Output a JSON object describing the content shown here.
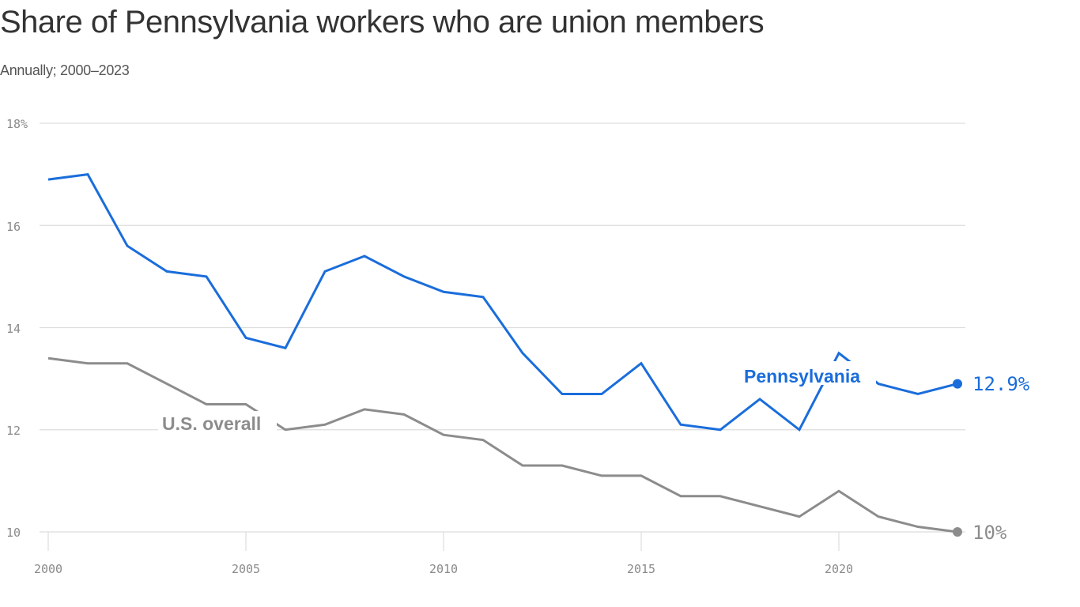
{
  "header": {
    "title": "Share of Pennsylvania workers who are union members",
    "subtitle": "Annually; 2000–2023"
  },
  "axes": {
    "y_ticks": [
      "18%",
      "16",
      "14",
      "12",
      "10"
    ],
    "x_ticks": [
      "2000",
      "2005",
      "2010",
      "2015",
      "2020"
    ]
  },
  "labels": {
    "pennsylvania": "Pennsylvania",
    "us_overall": "U.S. overall",
    "pennsylvania_end": "12.9%",
    "us_end": "10%"
  },
  "colors": {
    "pennsylvania": "#1a6ddb",
    "us_overall": "#8c8c8c",
    "grid": "#dddddd",
    "title": "#333333"
  },
  "chart_data": {
    "type": "line",
    "title": "Share of Pennsylvania workers who are union members",
    "subtitle": "Annually; 2000–2023",
    "xlabel": "",
    "ylabel": "",
    "ylim": [
      10,
      18
    ],
    "y_ticks": [
      10,
      12,
      14,
      16,
      18
    ],
    "x_ticks": [
      2000,
      2005,
      2010,
      2015,
      2020
    ],
    "grid": "horizontal",
    "legend": "inline labels",
    "x": [
      2000,
      2001,
      2002,
      2003,
      2004,
      2005,
      2006,
      2007,
      2008,
      2009,
      2010,
      2011,
      2012,
      2013,
      2014,
      2015,
      2016,
      2017,
      2018,
      2019,
      2020,
      2021,
      2022,
      2023
    ],
    "series": [
      {
        "name": "Pennsylvania",
        "color": "#1a6ddb",
        "values": [
          16.9,
          17.0,
          15.6,
          15.1,
          15.0,
          13.8,
          13.6,
          15.1,
          15.4,
          15.0,
          14.7,
          14.6,
          13.5,
          12.7,
          12.7,
          13.3,
          12.1,
          12.0,
          12.6,
          12.0,
          13.5,
          12.9,
          12.7,
          12.9
        ],
        "end_label": "12.9%"
      },
      {
        "name": "U.S. overall",
        "color": "#8c8c8c",
        "values": [
          13.4,
          13.3,
          13.3,
          12.9,
          12.5,
          12.5,
          12.0,
          12.1,
          12.4,
          12.3,
          11.9,
          11.8,
          11.3,
          11.3,
          11.1,
          11.1,
          10.7,
          10.7,
          10.5,
          10.3,
          10.8,
          10.3,
          10.1,
          10.0
        ],
        "end_label": "10%"
      }
    ]
  }
}
